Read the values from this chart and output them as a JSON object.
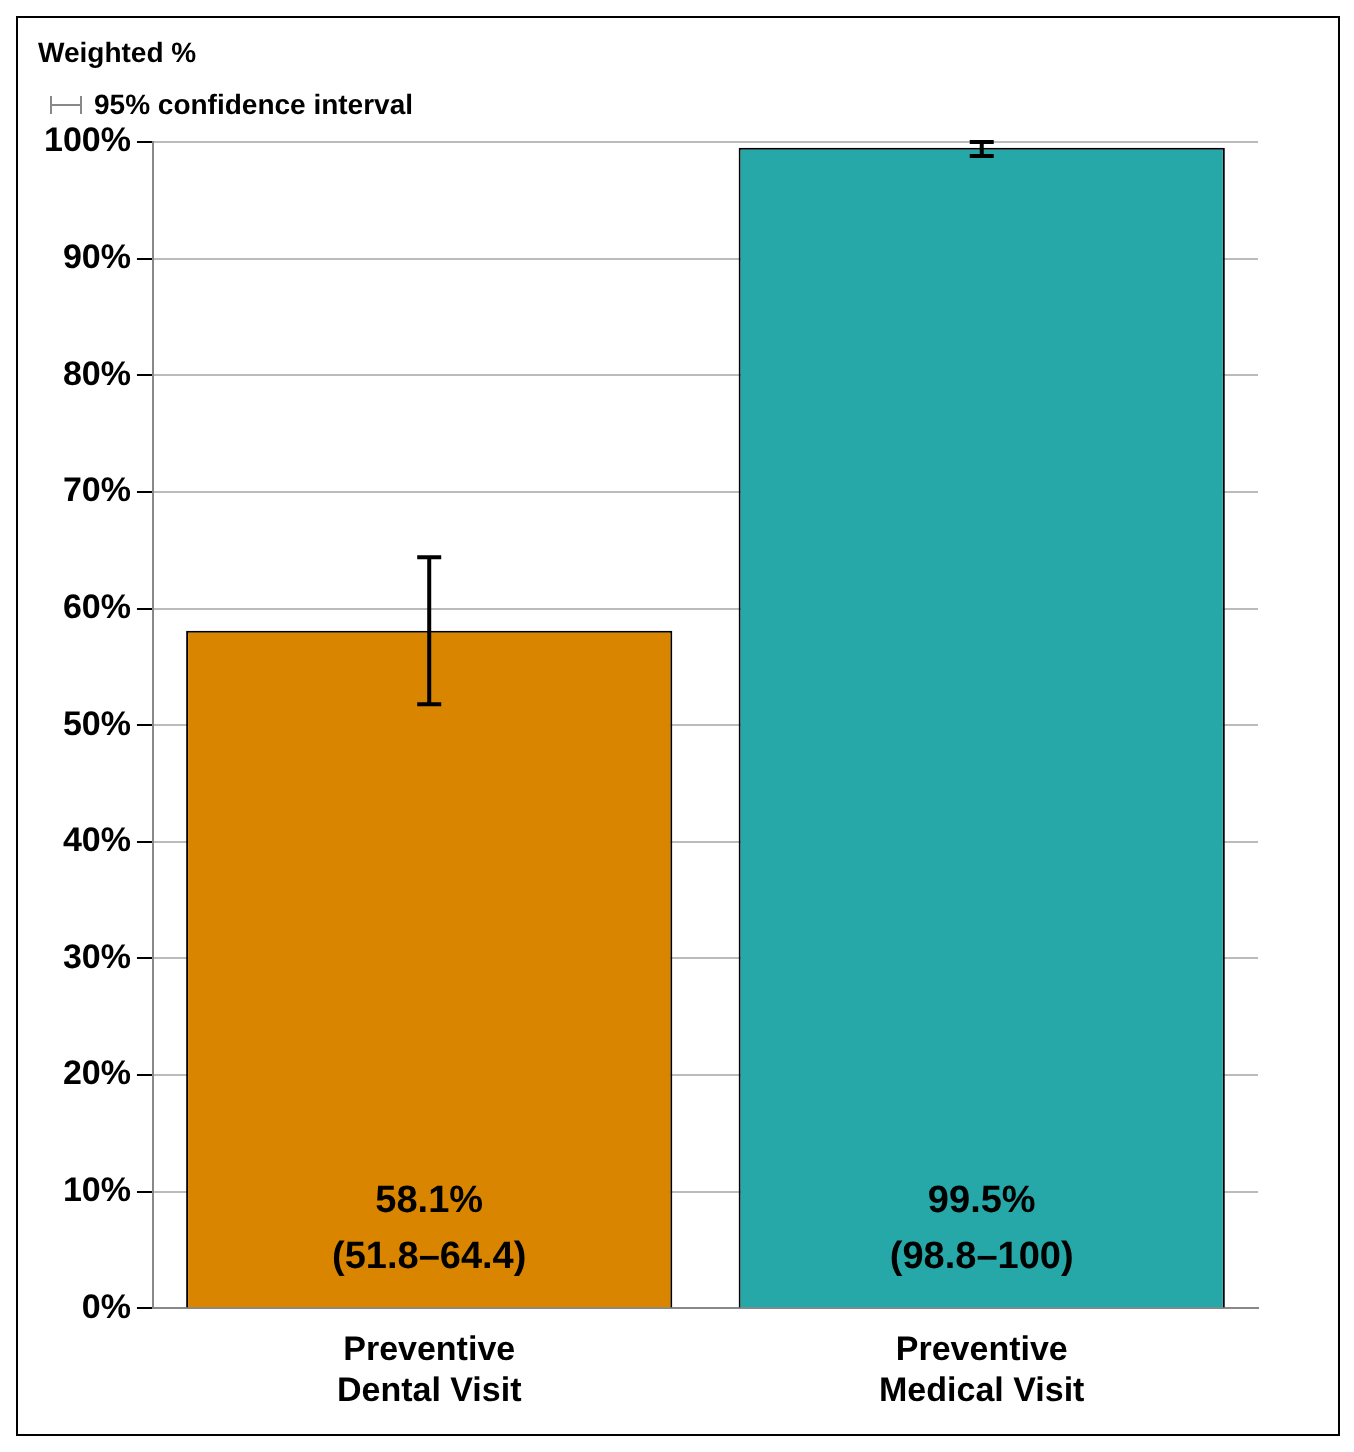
{
  "chart_data": {
    "type": "bar",
    "ylabel": "Weighted %",
    "annotations": [
      "95% confidence interval"
    ],
    "categories": [
      "Preventive Dental Visit",
      "Preventive Medical Visit"
    ],
    "values": [
      58.1,
      99.5
    ],
    "colors": [
      "#d98500",
      "#26a8a8"
    ],
    "errors": [
      [
        51.8,
        64.4
      ],
      [
        98.8,
        100
      ]
    ],
    "value_labels": [
      "58.1% (51.8–64.4)",
      "99.5% (98.8–100)"
    ],
    "ylim": [
      0,
      100
    ],
    "yticks": [
      {
        "value": 0,
        "label": "0%"
      },
      {
        "value": 10,
        "label": "10%"
      },
      {
        "value": 20,
        "label": "20%"
      },
      {
        "value": 30,
        "label": "30%"
      },
      {
        "value": 40,
        "label": "40%"
      },
      {
        "value": 50,
        "label": "50%"
      },
      {
        "value": 60,
        "label": "60%"
      },
      {
        "value": 70,
        "label": "70%"
      },
      {
        "value": 80,
        "label": "80%"
      },
      {
        "value": 90,
        "label": "90%"
      },
      {
        "value": 100,
        "label": "100%"
      }
    ],
    "grid": "y",
    "legend": false
  }
}
